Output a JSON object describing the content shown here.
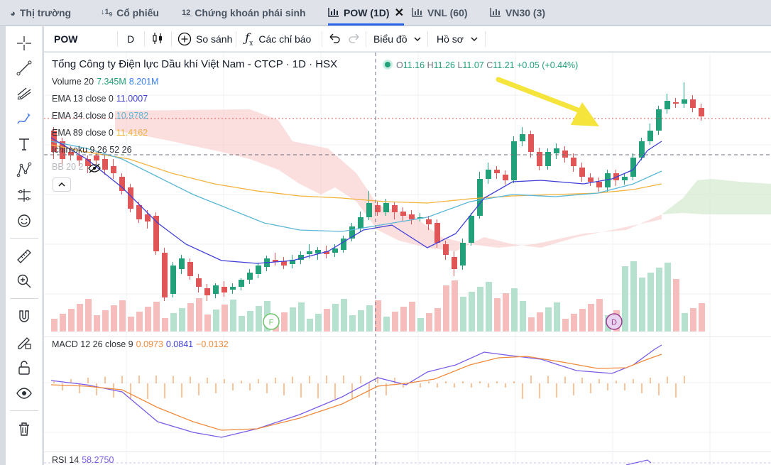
{
  "tabs": [
    {
      "label": "Thị trường",
      "icon": "pie-chart-icon"
    },
    {
      "label": "Cổ phiếu",
      "icon": "sort-number-icon"
    },
    {
      "label": "Chứng khoán phái sinh",
      "icon": "list-number-icon"
    },
    {
      "label": "POW (1D)",
      "icon": "candlestick-chart-icon",
      "active": true
    },
    {
      "label": "VNL (60)",
      "icon": "bar-chart-icon"
    },
    {
      "label": "VN30 (3)",
      "icon": "bar-chart-icon"
    }
  ],
  "toolbar": {
    "symbol": "POW",
    "interval": "D",
    "compare_label": "So sánh",
    "indicators_label": "Các chỉ báo",
    "chart_label": "Biểu đồ",
    "profile_label": "Hồ sơ"
  },
  "left_tools": [
    "crosshair-icon",
    "trend-line-icon",
    "fib-icon",
    "brush-icon",
    "text-icon",
    "pattern-icon",
    "measure-icon",
    "emoji-icon",
    "ruler-icon",
    "zoom-in-icon",
    "magnet-icon",
    "lock-drawing-icon",
    "lock-icon",
    "eye-icon",
    "trash-icon"
  ],
  "header": {
    "title": "Tổng Công ty Điện lực Dầu khí Việt Nam - CTCP · 1D · HSX",
    "ohlc": {
      "o_label": "O",
      "o": "11.16",
      "h_label": "H",
      "h": "11.26",
      "l_label": "L",
      "l": "11.07",
      "c_label": "C",
      "c": "11.21",
      "change": "+0.05 (+0.44%)"
    }
  },
  "legend": {
    "volume": {
      "name": "Volume 20",
      "v1": "7.345M",
      "v2": "8.201M"
    },
    "ema13": {
      "name": "EMA 13 close 0",
      "value": "11.0007"
    },
    "ema34": {
      "name": "EMA 34 close 0",
      "value": "10.9782"
    },
    "ema89": {
      "name": "EMA 89 close 0",
      "value": "11.4162"
    },
    "ichimoku": {
      "name": "Ichimoku 9 26 52 26"
    },
    "bb": {
      "name": "BB 20 2"
    },
    "macd": {
      "name": "MACD 12 26 close 9",
      "v1": "0.0973",
      "v2": "0.0841",
      "v3": "−0.0132"
    },
    "rsi": {
      "name": "RSI 14",
      "value": "58.2750"
    }
  },
  "markers": [
    {
      "label": "F"
    },
    {
      "label": "D"
    }
  ],
  "colors": {
    "up": "#22a079",
    "down": "#e05656",
    "ema13": "#3f3fd8",
    "ema34": "#5bb7d8",
    "ema89": "#f3b33d",
    "macd": "#7b5ce6",
    "signal": "#f08a3c",
    "arrow": "#f4e43c"
  }
}
